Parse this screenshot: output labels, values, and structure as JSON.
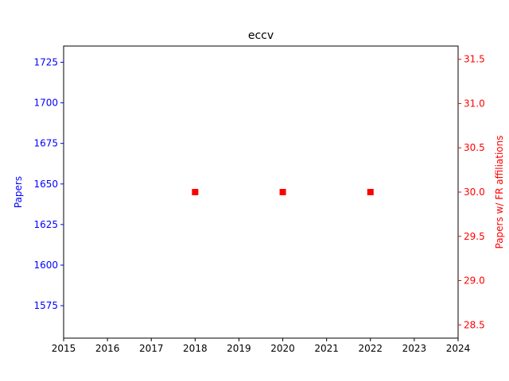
{
  "chart_data": {
    "type": "scatter",
    "title": "eccv",
    "xlabel": "",
    "ylabel_left": "Papers",
    "ylabel_right": "Papers w/ FR affiliations",
    "xlim": [
      2015,
      2024
    ],
    "ylim_left": [
      1555,
      1735
    ],
    "ylim_right": [
      28.35,
      31.65
    ],
    "x_ticks": [
      "2015",
      "2016",
      "2017",
      "2018",
      "2019",
      "2020",
      "2021",
      "2022",
      "2023",
      "2024"
    ],
    "y_ticks_left": [
      "1575",
      "1600",
      "1625",
      "1650",
      "1675",
      "1700",
      "1725"
    ],
    "y_ticks_right": [
      "28.5",
      "29.0",
      "29.5",
      "30.0",
      "30.5",
      "31.0",
      "31.5"
    ],
    "grid": false,
    "series": [
      {
        "axis": "right",
        "marker": "square",
        "color": "#ff0000",
        "x": [
          2018,
          2020,
          2022
        ],
        "y": [
          30.0,
          30.0,
          30.0
        ]
      }
    ],
    "colors": {
      "left_axis": "#0000ff",
      "right_axis": "#ff0000",
      "frame": "#000000"
    }
  }
}
